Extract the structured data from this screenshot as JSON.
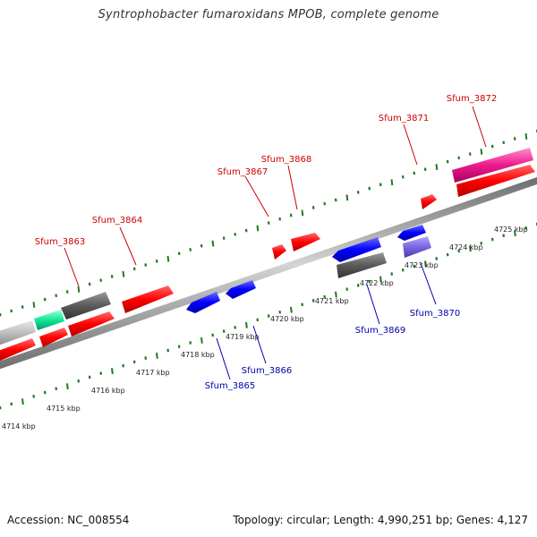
{
  "title": "Syntrophobacter fumaroxidans MPOB, complete genome",
  "footer": {
    "accession": "Accession: NC_008554",
    "topology": "Topology: circular; Length: 4,990,251 bp; Genes: 4,127"
  },
  "colors": {
    "forward_gene": "#ff0000",
    "reverse_gene": "#0000ff",
    "backbone": "#888888",
    "tick": "#1f7a1f",
    "forward_label": "#cc0000",
    "reverse_label": "#0000aa"
  },
  "scale": {
    "unit": "kbp",
    "labels": [
      {
        "kbp": 4714,
        "text": "4714 kbp"
      },
      {
        "kbp": 4715,
        "text": "4715 kbp"
      },
      {
        "kbp": 4716,
        "text": "4716 kbp"
      },
      {
        "kbp": 4717,
        "text": "4717 kbp"
      },
      {
        "kbp": 4718,
        "text": "4718 kbp"
      },
      {
        "kbp": 4719,
        "text": "4719 kbp"
      },
      {
        "kbp": 4720,
        "text": "4720 kbp"
      },
      {
        "kbp": 4721,
        "text": "4721 kbp"
      },
      {
        "kbp": 4722,
        "text": "4722 kbp"
      },
      {
        "kbp": 4723,
        "text": "4723 kbp"
      },
      {
        "kbp": 4724,
        "text": "4724 kbp"
      },
      {
        "kbp": 4725,
        "text": "4725 kbp"
      }
    ]
  },
  "genes": [
    {
      "id": "Sfum_3863",
      "label": "Sfum_3863",
      "strand": "forward"
    },
    {
      "id": "Sfum_3864",
      "label": "Sfum_3864",
      "strand": "forward"
    },
    {
      "id": "Sfum_3865",
      "label": "Sfum_3865",
      "strand": "reverse"
    },
    {
      "id": "Sfum_3866",
      "label": "Sfum_3866",
      "strand": "reverse"
    },
    {
      "id": "Sfum_3867",
      "label": "Sfum_3867",
      "strand": "forward"
    },
    {
      "id": "Sfum_3868",
      "label": "Sfum_3868",
      "strand": "forward"
    },
    {
      "id": "Sfum_3869",
      "label": "Sfum_3869",
      "strand": "reverse"
    },
    {
      "id": "Sfum_3870",
      "label": "Sfum_3870",
      "strand": "reverse"
    },
    {
      "id": "Sfum_3871",
      "label": "Sfum_3871",
      "strand": "forward"
    },
    {
      "id": "Sfum_3872",
      "label": "Sfum_3872",
      "strand": "forward"
    }
  ]
}
